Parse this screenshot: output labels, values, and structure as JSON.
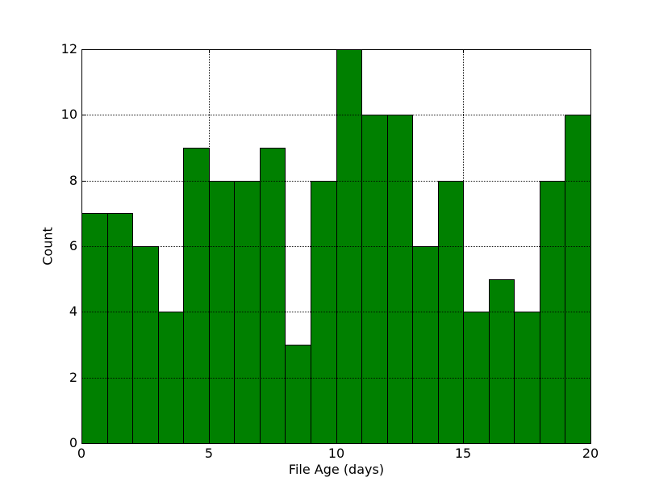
{
  "chart_data": {
    "type": "bar",
    "subtype": "histogram",
    "title": "",
    "xlabel": "File Age (days)",
    "ylabel": "Count",
    "bin_start": 0,
    "bin_width": 1,
    "categories": [
      "0-1",
      "1-2",
      "2-3",
      "3-4",
      "4-5",
      "5-6",
      "6-7",
      "7-8",
      "8-9",
      "9-10",
      "10-11",
      "11-12",
      "12-13",
      "13-14",
      "14-15",
      "15-16",
      "16-17",
      "17-18",
      "18-19",
      "19-20"
    ],
    "values": [
      7,
      7,
      6,
      4,
      9,
      8,
      8,
      9,
      3,
      8,
      12,
      10,
      10,
      6,
      8,
      4,
      5,
      4,
      8,
      10
    ],
    "xlim": [
      0,
      20
    ],
    "ylim": [
      0,
      12
    ],
    "xticks": [
      0,
      5,
      10,
      15,
      20
    ],
    "yticks": [
      0,
      2,
      4,
      6,
      8,
      10,
      12
    ],
    "grid": {
      "visible": true,
      "linestyle": "dotted",
      "color": "#000000",
      "x_gridlines": [
        5,
        10,
        15
      ],
      "y_gridlines": [
        2,
        4,
        6,
        8,
        10
      ],
      "drawn_above_bars": true
    },
    "bar_fill_color": "#008000",
    "bar_edge_color": "#000000",
    "axes_background": "#ffffff",
    "figure_background": "#ffffff",
    "legend": {
      "visible": false
    }
  }
}
